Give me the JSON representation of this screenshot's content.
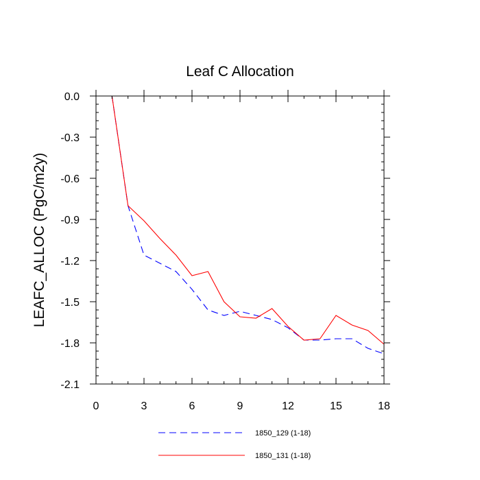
{
  "chart_data": {
    "type": "line",
    "title": "Leaf C Allocation",
    "xlabel": "",
    "ylabel": "LEAFC_ALLOC  (PgC/m2y)",
    "xlim": [
      0,
      18
    ],
    "ylim": [
      -2.1,
      0.0
    ],
    "xticks": [
      0,
      3,
      6,
      9,
      12,
      15,
      18
    ],
    "xtick_labels": [
      "0",
      "3",
      "6",
      "9",
      "12",
      "15",
      "18"
    ],
    "xminor_step": 1,
    "yticks": [
      0.0,
      -0.3,
      -0.6,
      -0.9,
      -1.2,
      -1.5,
      -1.8,
      -2.1
    ],
    "ytick_labels": [
      "0.0",
      "-0.3",
      "-0.6",
      "-0.9",
      "-1.2",
      "-1.5",
      "-1.8",
      "-2.1"
    ],
    "yminor_step": 0.06,
    "grid": false,
    "x": [
      1,
      2,
      3,
      4,
      5,
      6,
      7,
      8,
      9,
      10,
      11,
      12,
      13,
      14,
      15,
      16,
      17,
      18
    ],
    "series": [
      {
        "name": "1850_129 (1-18)",
        "color": "#0000ff",
        "dash": "dashed",
        "values": [
          0.0,
          -0.8,
          -1.16,
          -1.22,
          -1.28,
          -1.41,
          -1.56,
          -1.6,
          -1.57,
          -1.6,
          -1.63,
          -1.69,
          -1.78,
          -1.78,
          -1.77,
          -1.77,
          -1.84,
          -1.88
        ]
      },
      {
        "name": "1850_131 (1-18)",
        "color": "#ff0000",
        "dash": "solid",
        "values": [
          0.0,
          -0.8,
          -0.91,
          -1.04,
          -1.16,
          -1.31,
          -1.28,
          -1.5,
          -1.61,
          -1.62,
          -1.55,
          -1.68,
          -1.78,
          -1.77,
          -1.6,
          -1.67,
          -1.71,
          -1.81
        ]
      }
    ],
    "legend_position": "bottom"
  }
}
